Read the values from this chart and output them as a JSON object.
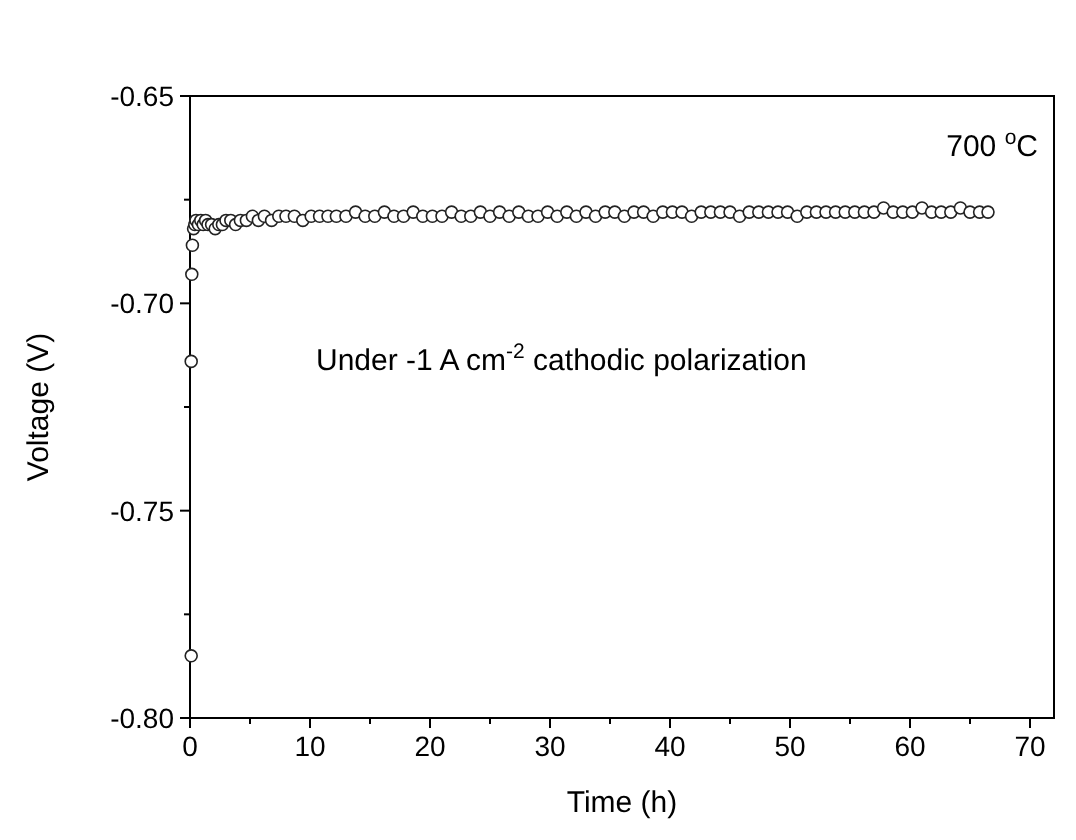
{
  "chart_data": {
    "type": "scatter",
    "xlabel": "Time (h)",
    "ylabel": "Voltage (V)",
    "xlim": [
      0,
      72
    ],
    "ylim": [
      -0.8,
      -0.65
    ],
    "xticks": [
      0,
      10,
      20,
      30,
      40,
      50,
      60,
      70
    ],
    "yticks": [
      {
        "value": -0.8,
        "label": "-0.80"
      },
      {
        "value": -0.75,
        "label": "-0.75"
      },
      {
        "value": -0.7,
        "label": "-0.70"
      },
      {
        "value": -0.65,
        "label": "-0.65"
      }
    ],
    "marker": "circle",
    "grid": false,
    "annotations": [
      {
        "text": "700 $^{o}$C"
      },
      {
        "text": "Under -1 A cm$^{-2}$ cathodic polarization"
      }
    ],
    "series": [
      {
        "color": "#222222",
        "x": [
          0.1,
          0.1,
          0.15,
          0.2,
          0.3,
          0.4,
          0.5,
          0.7,
          0.9,
          1.1,
          1.3,
          1.5,
          1.8,
          2.1,
          2.4,
          2.7,
          3.0,
          3.4,
          3.8,
          4.2,
          4.7,
          5.2,
          5.7,
          6.2,
          6.8,
          7.4,
          8.0,
          8.7,
          9.4,
          10.1,
          10.8,
          11.5,
          12.2,
          13.0,
          13.8,
          14.6,
          15.4,
          16.2,
          17.0,
          17.8,
          18.6,
          19.4,
          20.2,
          21.0,
          21.8,
          22.6,
          23.4,
          24.2,
          25.0,
          25.8,
          26.6,
          27.4,
          28.2,
          29.0,
          29.8,
          30.6,
          31.4,
          32.2,
          33.0,
          33.8,
          34.6,
          35.4,
          36.2,
          37.0,
          37.8,
          38.6,
          39.4,
          40.2,
          41.0,
          41.8,
          42.6,
          43.4,
          44.2,
          45.0,
          45.8,
          46.6,
          47.4,
          48.2,
          49.0,
          49.8,
          50.6,
          51.4,
          52.2,
          53.0,
          53.8,
          54.6,
          55.4,
          56.2,
          57.0,
          57.8,
          58.6,
          59.4,
          60.2,
          61.0,
          61.8,
          62.6,
          63.4,
          64.2,
          65.0,
          65.8,
          66.5
        ],
        "values": [
          -0.785,
          -0.714,
          -0.693,
          -0.686,
          -0.682,
          -0.681,
          -0.68,
          -0.681,
          -0.68,
          -0.681,
          -0.68,
          -0.681,
          -0.681,
          -0.682,
          -0.681,
          -0.681,
          -0.68,
          -0.68,
          -0.681,
          -0.68,
          -0.68,
          -0.679,
          -0.68,
          -0.679,
          -0.68,
          -0.679,
          -0.679,
          -0.679,
          -0.68,
          -0.679,
          -0.679,
          -0.679,
          -0.679,
          -0.679,
          -0.678,
          -0.679,
          -0.679,
          -0.678,
          -0.679,
          -0.679,
          -0.678,
          -0.679,
          -0.679,
          -0.679,
          -0.678,
          -0.679,
          -0.679,
          -0.678,
          -0.679,
          -0.678,
          -0.679,
          -0.678,
          -0.679,
          -0.679,
          -0.678,
          -0.679,
          -0.678,
          -0.679,
          -0.678,
          -0.679,
          -0.678,
          -0.678,
          -0.679,
          -0.678,
          -0.678,
          -0.679,
          -0.678,
          -0.678,
          -0.678,
          -0.679,
          -0.678,
          -0.678,
          -0.678,
          -0.678,
          -0.679,
          -0.678,
          -0.678,
          -0.678,
          -0.678,
          -0.678,
          -0.679,
          -0.678,
          -0.678,
          -0.678,
          -0.678,
          -0.678,
          -0.678,
          -0.678,
          -0.678,
          -0.677,
          -0.678,
          -0.678,
          -0.678,
          -0.677,
          -0.678,
          -0.678,
          -0.678,
          -0.677,
          -0.678,
          -0.678,
          -0.678
        ]
      }
    ]
  }
}
